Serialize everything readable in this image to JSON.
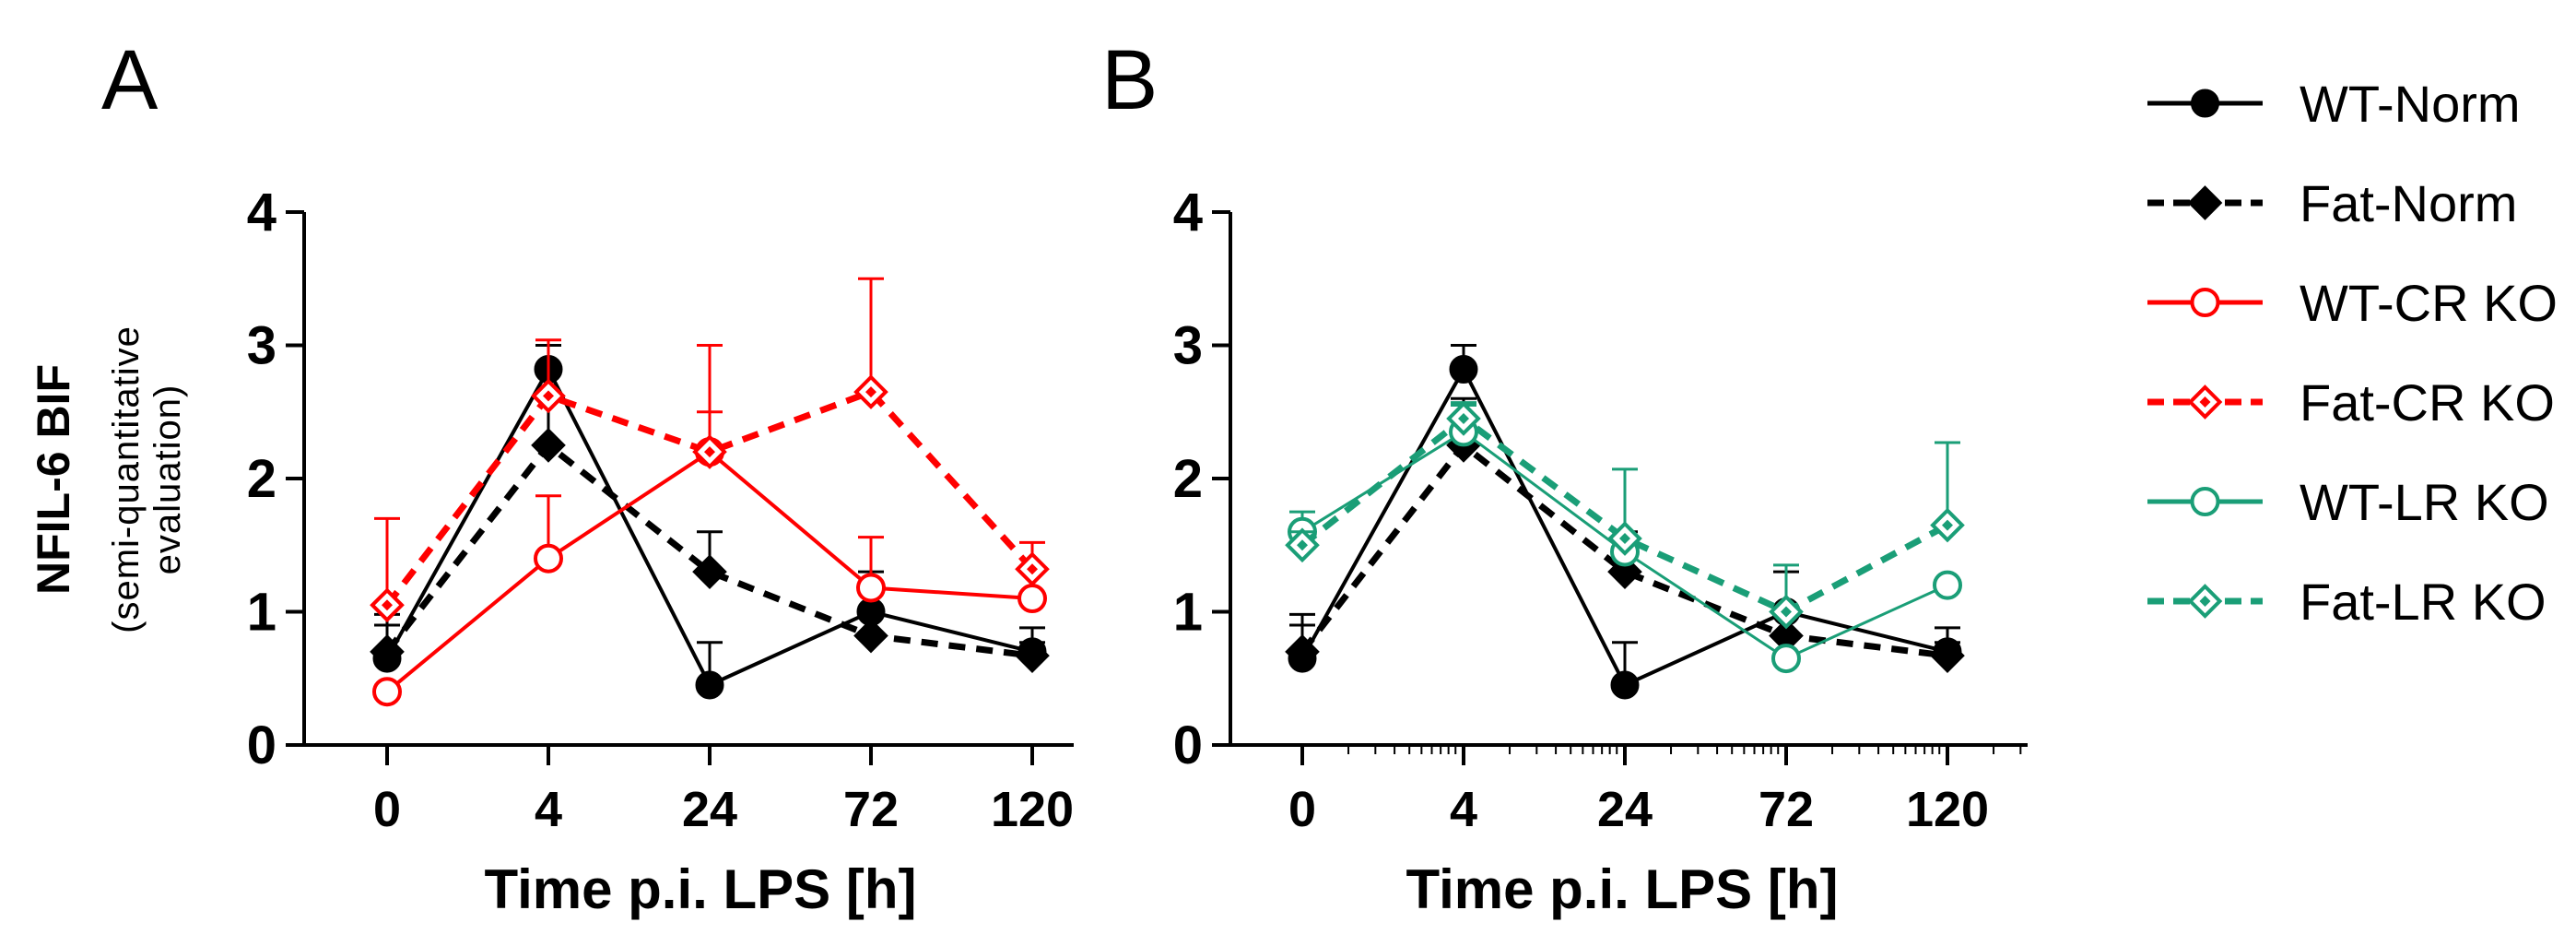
{
  "panels": {
    "A": {
      "label": "A"
    },
    "B": {
      "label": "B"
    }
  },
  "axes": {
    "ylabel_main": "NFIL-6 BIF",
    "ylabel_sub_1": "(semi-quantitative",
    "ylabel_sub_2": "evaluation)",
    "xlabel": "Time p.i. LPS [h]"
  },
  "colors": {
    "black": "#000000",
    "red": "#ff0000",
    "green": "#1a9e77"
  },
  "chart_data": [
    {
      "type": "line",
      "panel": "A",
      "categories": [
        "0",
        "4",
        "24",
        "72",
        "120"
      ],
      "xlabel": "Time p.i. LPS [h]",
      "ylabel": "NFIL-6 BIF (semi-quantitative evaluation)",
      "ylim": [
        0,
        4
      ],
      "yticks": [
        "0",
        "1",
        "2",
        "3",
        "4"
      ],
      "series": [
        {
          "name": "WT-Norm",
          "color": "#000000",
          "marker": "circle-filled",
          "line": "solid",
          "values": [
            0.65,
            2.82,
            0.45,
            1.0,
            0.7
          ],
          "err": [
            0.33,
            0.18,
            0.32,
            0.3,
            0.18
          ]
        },
        {
          "name": "Fat-Norm",
          "color": "#000000",
          "marker": "diamond-filled",
          "line": "dashed",
          "values": [
            0.7,
            2.25,
            1.3,
            0.82,
            0.67
          ],
          "err": [
            0.2,
            0.35,
            0.3,
            0.15,
            0.1
          ]
        },
        {
          "name": "WT-CR KO",
          "color": "#ff0000",
          "marker": "circle-open",
          "line": "solid",
          "values": [
            0.4,
            1.4,
            2.2,
            1.18,
            1.1
          ],
          "err": [
            0.0,
            0.47,
            0.3,
            0.38,
            0.0
          ]
        },
        {
          "name": "Fat-CR KO",
          "color": "#ff0000",
          "marker": "diamond-open",
          "line": "dashed",
          "values": [
            1.05,
            2.62,
            2.2,
            2.65,
            1.32
          ],
          "err": [
            0.65,
            0.42,
            0.8,
            0.85,
            0.2
          ]
        }
      ]
    },
    {
      "type": "line",
      "panel": "B",
      "categories": [
        "0",
        "4",
        "24",
        "72",
        "120"
      ],
      "xlabel": "Time p.i. LPS [h]",
      "ylim": [
        0,
        4
      ],
      "yticks": [
        "0",
        "1",
        "2",
        "3",
        "4"
      ],
      "series": [
        {
          "name": "WT-Norm",
          "color": "#000000",
          "marker": "circle-filled",
          "line": "solid",
          "values": [
            0.65,
            2.82,
            0.45,
            1.0,
            0.7
          ],
          "err": [
            0.33,
            0.18,
            0.32,
            0.3,
            0.18
          ]
        },
        {
          "name": "Fat-Norm",
          "color": "#000000",
          "marker": "diamond-filled",
          "line": "dashed",
          "values": [
            0.7,
            2.25,
            1.3,
            0.82,
            0.67
          ],
          "err": [
            0.2,
            0.35,
            0.3,
            0.15,
            0.1
          ]
        },
        {
          "name": "WT-LR KO",
          "color": "#1a9e77",
          "marker": "circle-open",
          "line": "solid",
          "values": [
            1.6,
            2.35,
            1.45,
            0.65,
            1.2
          ],
          "err": [
            0.15,
            0.2,
            0.1,
            0.0,
            0.0
          ]
        },
        {
          "name": "Fat-LR KO",
          "color": "#1a9e77",
          "marker": "diamond-open",
          "line": "dashed",
          "values": [
            1.5,
            2.45,
            1.55,
            1.0,
            1.65
          ],
          "err": [
            0.1,
            0.12,
            0.52,
            0.35,
            0.62
          ]
        }
      ]
    }
  ],
  "legend": [
    {
      "label": "WT-Norm",
      "color": "#000000",
      "marker": "circle-filled",
      "line": "solid"
    },
    {
      "label": "Fat-Norm",
      "color": "#000000",
      "marker": "diamond-filled",
      "line": "dashed"
    },
    {
      "label": "WT-CR KO",
      "color": "#ff0000",
      "marker": "circle-open",
      "line": "solid"
    },
    {
      "label": "Fat-CR KO",
      "color": "#ff0000",
      "marker": "diamond-open",
      "line": "dashed"
    },
    {
      "label": "WT-LR KO",
      "color": "#1a9e77",
      "marker": "circle-open",
      "line": "solid"
    },
    {
      "label": "Fat-LR KO",
      "color": "#1a9e77",
      "marker": "diamond-open",
      "line": "dashed"
    }
  ]
}
